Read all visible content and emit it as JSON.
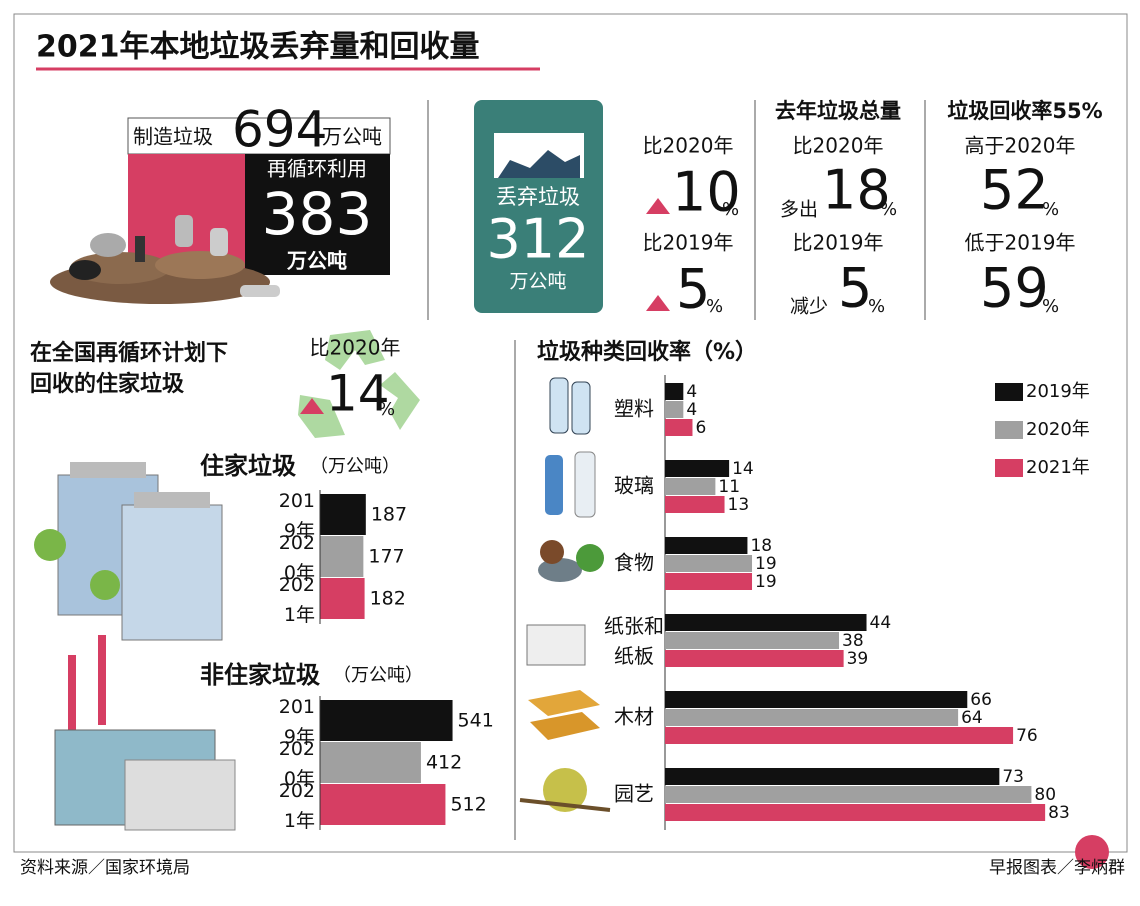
{
  "title": "2021年本地垃圾丢弃量和回收量",
  "generated": {
    "label": "制造垃圾",
    "value": "694",
    "unit": "万公吨"
  },
  "recycled": {
    "label": "再循环利用",
    "value": "383",
    "unit": "万公吨"
  },
  "disposed": {
    "label": "丢弃垃圾",
    "value": "312",
    "unit": "万公吨"
  },
  "disposed_change": [
    {
      "label": "比2020年",
      "value": "10",
      "unit": "%"
    },
    {
      "label": "比2019年",
      "value": "5",
      "unit": "%"
    }
  ],
  "total_change": {
    "header": "去年垃圾总量",
    "items": [
      {
        "label": "比2020年",
        "prefix": "多出",
        "value": "18",
        "unit": "%"
      },
      {
        "label": "比2019年",
        "prefix": "减少",
        "value": "5",
        "unit": "%"
      }
    ]
  },
  "recycling_rate": {
    "header": "垃圾回收率55%",
    "items": [
      {
        "label": "高于2020年",
        "value": "52",
        "unit": "%"
      },
      {
        "label": "低于2019年",
        "value": "59",
        "unit": "%"
      }
    ]
  },
  "household_section": {
    "title_lines": [
      "在全国再循环计划下",
      "回收的住家垃圾"
    ],
    "change": {
      "label": "比2020年",
      "value": "14",
      "unit": "%"
    }
  },
  "chart_data": [
    {
      "type": "bar",
      "title": "住家垃圾",
      "unit": "（万公吨）",
      "categories": [
        "2019年",
        "2020年",
        "2021年"
      ],
      "values": [
        187,
        177,
        182
      ],
      "colors": [
        "#111111",
        "#a0a0a0",
        "#d63e63"
      ]
    },
    {
      "type": "bar",
      "title": "非住家垃圾",
      "unit": "（万公吨）",
      "categories": [
        "2019年",
        "2020年",
        "2021年"
      ],
      "values": [
        541,
        412,
        512
      ],
      "colors": [
        "#111111",
        "#a0a0a0",
        "#d63e63"
      ]
    },
    {
      "type": "grouped-bar",
      "title": "垃圾种类回收率（%）",
      "categories": [
        "塑料",
        "玻璃",
        "食物",
        "纸张和纸板",
        "木材",
        "园艺"
      ],
      "series": [
        {
          "name": "2019年",
          "color": "#111111",
          "values": [
            4,
            14,
            18,
            44,
            66,
            73
          ]
        },
        {
          "name": "2020年",
          "color": "#a0a0a0",
          "values": [
            4,
            11,
            19,
            38,
            64,
            80
          ]
        },
        {
          "name": "2021年",
          "color": "#d63e63",
          "values": [
            6,
            13,
            19,
            39,
            76,
            83
          ]
        }
      ]
    }
  ],
  "footer": {
    "source": "资料来源／国家环境局",
    "credit": "早报图表／李炳群"
  }
}
